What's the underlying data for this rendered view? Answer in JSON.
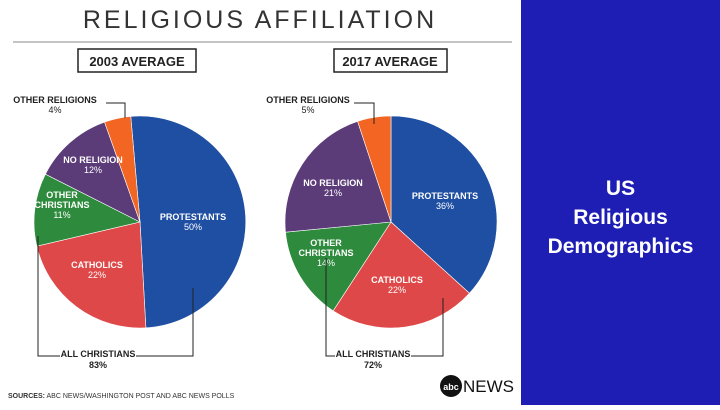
{
  "infographic": {
    "title": "RELIGIOUS AFFILIATION",
    "source": "SOURCES: ABC NEWS/WASHINGTON POST AND ABC NEWS POLLS",
    "logo": "abcNEWS"
  },
  "side_panel": {
    "lines": [
      "US",
      "Religious",
      "Demographics"
    ],
    "background_color": "#1e1eb4",
    "text_color": "#ffffff"
  },
  "chart_data": [
    {
      "type": "pie",
      "title": "2003 AVERAGE",
      "slices": [
        {
          "label": "PROTESTANTS",
          "value": 50,
          "value_label": "50%",
          "color": "#1f4fa2"
        },
        {
          "label": "CATHOLICS",
          "value": 22,
          "value_label": "22%",
          "color": "#df4848"
        },
        {
          "label": "OTHER CHRISTIANS",
          "value": 11,
          "value_label": "11%",
          "color": "#2e8a3c"
        },
        {
          "label": "NO RELIGION",
          "value": 12,
          "value_label": "12%",
          "color": "#5b3c78"
        },
        {
          "label": "OTHER RELIGIONS",
          "value": 4,
          "value_label": "4%",
          "color": "#f26522"
        }
      ],
      "group_annotation": {
        "label": "ALL CHRISTIANS",
        "value_label": "83%"
      }
    },
    {
      "type": "pie",
      "title": "2017 AVERAGE",
      "slices": [
        {
          "label": "PROTESTANTS",
          "value": 36,
          "value_label": "36%",
          "color": "#1f4fa2"
        },
        {
          "label": "CATHOLICS",
          "value": 22,
          "value_label": "22%",
          "color": "#df4848"
        },
        {
          "label": "OTHER CHRISTIANS",
          "value": 14,
          "value_label": "14%",
          "color": "#2e8a3c"
        },
        {
          "label": "NO RELIGION",
          "value": 21,
          "value_label": "21%",
          "color": "#5b3c78"
        },
        {
          "label": "OTHER RELIGIONS",
          "value": 5,
          "value_label": "5%",
          "color": "#f26522"
        }
      ],
      "group_annotation": {
        "label": "ALL CHRISTIANS",
        "value_label": "72%"
      }
    }
  ]
}
